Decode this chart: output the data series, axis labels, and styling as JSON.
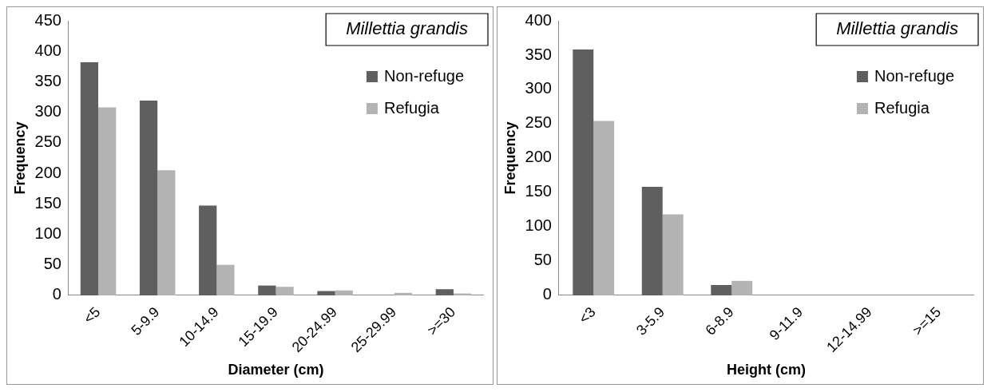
{
  "chart_data": [
    {
      "type": "bar",
      "title": "Millettia grandis",
      "xlabel": "Diameter (cm)",
      "ylabel": "Frequency",
      "categories": [
        "<5",
        "5-9.9",
        "10-14.9",
        "15-19.9",
        "20-24.99",
        "25-29.99",
        ">=30"
      ],
      "series": [
        {
          "name": "Non-refuge",
          "color": "#5f5f5f",
          "values": [
            382,
            319,
            147,
            16,
            7,
            0,
            10
          ]
        },
        {
          "name": "Refugia",
          "color": "#b3b3b3",
          "values": [
            308,
            205,
            50,
            14,
            8,
            4,
            3
          ]
        }
      ],
      "ylim": [
        0,
        450
      ],
      "yticks": [
        0,
        50,
        100,
        150,
        200,
        250,
        300,
        350,
        400,
        450
      ],
      "grid": false,
      "legend": "top right"
    },
    {
      "type": "bar",
      "title": "Millettia grandis",
      "xlabel": "Height (cm)",
      "ylabel": "Frequency",
      "categories": [
        "<3",
        "3-5.9",
        "6-8.9",
        "9-11.9",
        "12-14.99",
        ">=15"
      ],
      "series": [
        {
          "name": "Non-refuge",
          "color": "#5f5f5f",
          "values": [
            358,
            158,
            15,
            0,
            0,
            0
          ]
        },
        {
          "name": "Refugia",
          "color": "#b3b3b3",
          "values": [
            254,
            118,
            21,
            0,
            0,
            0
          ]
        }
      ],
      "ylim": [
        0,
        400
      ],
      "yticks": [
        0,
        50,
        100,
        150,
        200,
        250,
        300,
        350,
        400
      ],
      "grid": false,
      "legend": "top right"
    }
  ]
}
